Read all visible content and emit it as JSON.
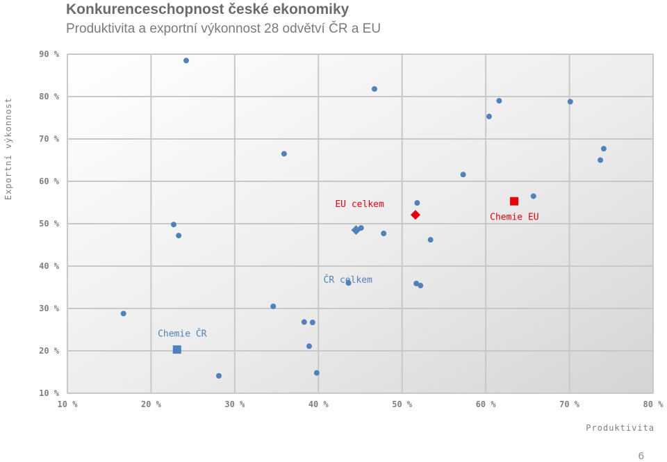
{
  "title": "Konkurenceschopnost české ekonomiky",
  "subtitle": "Produktivita a exportní výkonnost 28 odvětví ČR a EU",
  "page_number": "6",
  "colors": {
    "blue": "#4f81bd",
    "red": "#e8000b",
    "grid": "#c8c8c8",
    "axis_text": "#7f7f7f"
  },
  "chart_data": {
    "type": "scatter",
    "xlabel": "Produktivita",
    "ylabel": "Exportní výkonnost",
    "xlim": [
      10,
      80
    ],
    "ylim": [
      10,
      90
    ],
    "x_ticks": [
      10,
      20,
      30,
      40,
      50,
      60,
      70,
      80
    ],
    "y_ticks": [
      10,
      20,
      30,
      40,
      50,
      60,
      70,
      80,
      90
    ],
    "x_tick_labels": [
      "10 %",
      "20 %",
      "30 %",
      "40 %",
      "50 %",
      "60 %",
      "70 %",
      "80 %"
    ],
    "y_tick_labels": [
      "10 %",
      "20 %",
      "30 %",
      "40 %",
      "50 %",
      "60 %",
      "70 %",
      "80 %",
      "90 %"
    ],
    "grid": true,
    "series": [
      {
        "marker": "circle",
        "color": "#4f81bd",
        "points": [
          [
            24.2,
            88.5
          ],
          [
            46.7,
            81.8
          ],
          [
            61.6,
            79.0
          ],
          [
            70.1,
            78.8
          ],
          [
            60.4,
            75.3
          ],
          [
            74.1,
            67.7
          ],
          [
            35.9,
            66.5
          ],
          [
            73.7,
            65.0
          ],
          [
            57.3,
            61.6
          ],
          [
            65.7,
            56.5
          ],
          [
            51.8,
            54.9
          ],
          [
            22.7,
            49.8
          ],
          [
            45.1,
            49.0
          ],
          [
            47.8,
            47.7
          ],
          [
            23.3,
            47.2
          ],
          [
            53.4,
            46.2
          ],
          [
            43.6,
            36.0
          ],
          [
            51.7,
            35.9
          ],
          [
            52.2,
            35.4
          ],
          [
            16.7,
            28.8
          ],
          [
            34.6,
            30.5
          ],
          [
            38.3,
            26.8
          ],
          [
            39.3,
            26.7
          ],
          [
            38.9,
            21.1
          ],
          [
            28.1,
            14.1
          ],
          [
            39.8,
            14.8
          ]
        ]
      },
      {
        "name": "ČR celkem",
        "marker": "diamond",
        "color": "#4f81bd",
        "points": [
          [
            44.5,
            48.5
          ]
        ]
      },
      {
        "name": "EU celkem",
        "marker": "diamond",
        "color": "#e8000b",
        "points": [
          [
            51.6,
            52.1
          ]
        ]
      },
      {
        "name": "Chemie ČR",
        "marker": "square",
        "color": "#4f81bd",
        "points": [
          [
            23.1,
            20.3
          ]
        ]
      },
      {
        "name": "Chemie EU",
        "marker": "square",
        "color": "#e8000b",
        "points": [
          [
            63.4,
            55.3
          ]
        ]
      }
    ],
    "annotations": [
      {
        "text": "EU celkem",
        "x": 42.0,
        "y": 53.9,
        "color": "#e8000b"
      },
      {
        "text": "ČR celkem",
        "x": 40.6,
        "y": 36.1,
        "color": "#4f81bd"
      },
      {
        "text": "Chemie EU",
        "x": 60.5,
        "y": 50.9,
        "color": "#e8000b"
      },
      {
        "text": "Chemie ČR",
        "x": 20.8,
        "y": 23.4,
        "color": "#4f81bd"
      }
    ]
  }
}
